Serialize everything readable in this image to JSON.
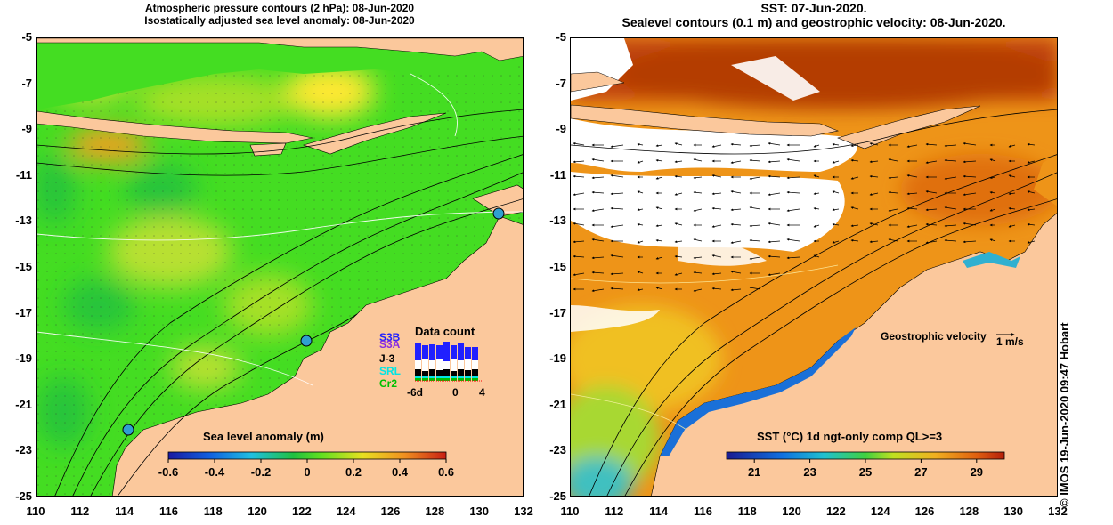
{
  "left_panel": {
    "title_line1": "Atmospheric pressure contours (2 hPa): 08-Jun-2020",
    "title_line2": "Isostatically adjusted sea level anomaly: 08-Jun-2020",
    "colorbar": {
      "label": "Sea level anomaly (m)",
      "ticks": [
        "-0.6",
        "-0.4",
        "-0.2",
        "0",
        "0.2",
        "0.4",
        "0.6"
      ],
      "range": [
        -0.6,
        0.6
      ]
    },
    "data_count": {
      "title": "Data count",
      "satellites": [
        {
          "name": "S3B",
          "color": "#2020ff"
        },
        {
          "name": "S3A",
          "color": "#8a2be2"
        },
        {
          "name": "J-3",
          "color": "#000000"
        },
        {
          "name": "SRL",
          "color": "#00e5e5"
        },
        {
          "name": "Cr2",
          "color": "#00c000"
        }
      ],
      "x_ticks": [
        "-6d",
        "0",
        "4"
      ]
    }
  },
  "right_panel": {
    "title_line1": "SST: 07-Jun-2020.",
    "title_line2": "Sealevel contours (0.1 m) and geostrophic velocity: 08-Jun-2020.",
    "velocity_label": "Geostrophic velocity",
    "velocity_unit": "1 m/s",
    "colorbar": {
      "label": "SST (°C) 1d ngt-only comp QL>=3",
      "ticks": [
        "21",
        "23",
        "25",
        "27",
        "29"
      ],
      "range": [
        20,
        30
      ]
    }
  },
  "axes": {
    "y_ticks": [
      "-5",
      "-7",
      "-9",
      "-11",
      "-13",
      "-15",
      "-17",
      "-19",
      "-21",
      "-23",
      "-25"
    ],
    "x_ticks": [
      "110",
      "112",
      "114",
      "116",
      "118",
      "120",
      "122",
      "124",
      "126",
      "128",
      "130",
      "132"
    ],
    "lon_range": [
      110,
      132
    ],
    "lat_range": [
      -25,
      -5
    ]
  },
  "credit": "© IMOS 19-Jun-2020 09:47 Hobart",
  "colors": {
    "land": "#fbc89c",
    "sla_base": "#44dd22",
    "sst_warm": "#e88a14",
    "sst_hot": "#b43c00",
    "sst_cool": "#1a70d8",
    "cloud": "#ffffff"
  }
}
